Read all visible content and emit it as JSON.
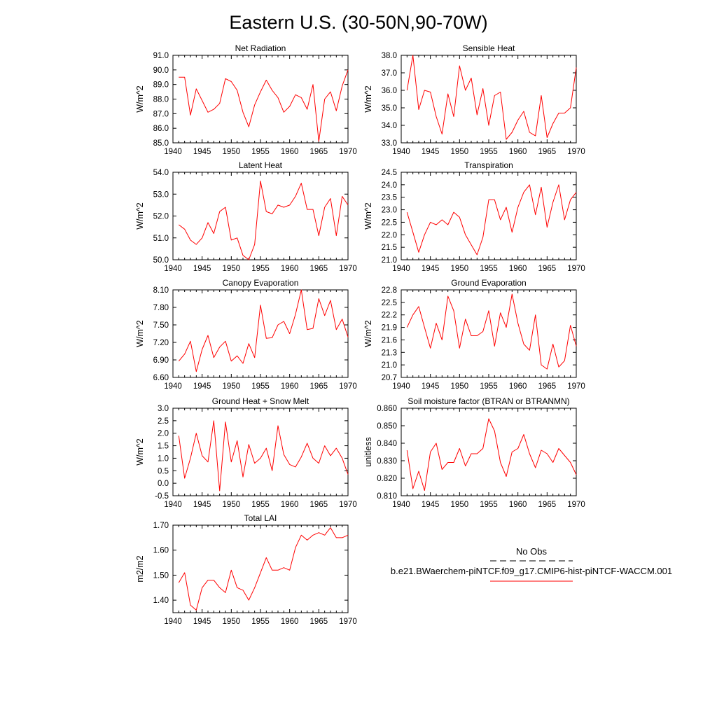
{
  "title": "Eastern U.S. (30-50N,90-70W)",
  "chart_data": [
    {
      "type": "line",
      "title": "Net Radiation",
      "ylabel": "W/m^2",
      "xlim": [
        1940,
        1970
      ],
      "ylim": [
        85.0,
        91.0
      ],
      "xticks": [
        "1940",
        "1945",
        "1950",
        "1955",
        "1960",
        "1965",
        "1970"
      ],
      "yticks": [
        "85.0",
        "86.0",
        "87.0",
        "88.0",
        "89.0",
        "90.0",
        "91.0"
      ],
      "x": [
        1941,
        1942,
        1943,
        1944,
        1945,
        1946,
        1947,
        1948,
        1949,
        1950,
        1951,
        1952,
        1953,
        1954,
        1955,
        1956,
        1957,
        1958,
        1959,
        1960,
        1961,
        1962,
        1963,
        1964,
        1965,
        1966,
        1967,
        1968,
        1969,
        1970
      ],
      "series": [
        {
          "values": [
            89.5,
            89.5,
            86.9,
            88.7,
            87.9,
            87.1,
            87.3,
            87.7,
            89.4,
            89.2,
            88.6,
            87.1,
            86.1,
            87.6,
            88.5,
            89.3,
            88.6,
            88.1,
            87.1,
            87.5,
            88.3,
            88.1,
            87.3,
            89.0,
            85.1,
            88.0,
            88.5,
            87.2,
            88.9,
            90.0
          ]
        }
      ]
    },
    {
      "type": "line",
      "title": "Sensible Heat",
      "ylabel": "W/m^2",
      "xlim": [
        1940,
        1970
      ],
      "ylim": [
        33.0,
        38.0
      ],
      "xticks": [
        "1940",
        "1945",
        "1950",
        "1955",
        "1960",
        "1965",
        "1970"
      ],
      "yticks": [
        "33.0",
        "34.0",
        "35.0",
        "36.0",
        "37.0",
        "38.0"
      ],
      "x": [
        1941,
        1942,
        1943,
        1944,
        1945,
        1946,
        1947,
        1948,
        1949,
        1950,
        1951,
        1952,
        1953,
        1954,
        1955,
        1956,
        1957,
        1958,
        1959,
        1960,
        1961,
        1962,
        1963,
        1964,
        1965,
        1966,
        1967,
        1968,
        1969,
        1970
      ],
      "series": [
        {
          "values": [
            36.0,
            38.0,
            34.9,
            36.0,
            35.9,
            34.5,
            33.5,
            35.8,
            34.5,
            37.4,
            36.0,
            36.7,
            34.6,
            36.1,
            34.0,
            35.7,
            35.9,
            33.2,
            33.6,
            34.3,
            34.8,
            33.6,
            33.4,
            35.7,
            33.3,
            34.1,
            34.7,
            34.7,
            35.0,
            37.3
          ]
        }
      ]
    },
    {
      "type": "line",
      "title": "Latent Heat",
      "ylabel": "W/m^2",
      "xlim": [
        1940,
        1970
      ],
      "ylim": [
        50.0,
        54.0
      ],
      "xticks": [
        "1940",
        "1945",
        "1950",
        "1955",
        "1960",
        "1965",
        "1970"
      ],
      "yticks": [
        "50.0",
        "51.0",
        "52.0",
        "53.0",
        "54.0"
      ],
      "x": [
        1941,
        1942,
        1943,
        1944,
        1945,
        1946,
        1947,
        1948,
        1949,
        1950,
        1951,
        1952,
        1953,
        1954,
        1955,
        1956,
        1957,
        1958,
        1959,
        1960,
        1961,
        1962,
        1963,
        1964,
        1965,
        1966,
        1967,
        1968,
        1969,
        1970
      ],
      "series": [
        {
          "values": [
            51.6,
            51.4,
            50.9,
            50.7,
            51.0,
            51.7,
            51.2,
            52.2,
            52.4,
            50.9,
            51.0,
            50.2,
            50.0,
            50.7,
            53.6,
            52.2,
            52.1,
            52.5,
            52.4,
            52.5,
            52.9,
            53.5,
            52.3,
            52.3,
            51.1,
            52.4,
            52.8,
            51.1,
            52.9,
            52.5
          ]
        }
      ]
    },
    {
      "type": "line",
      "title": "Transpiration",
      "ylabel": "W/m^2",
      "xlim": [
        1940,
        1970
      ],
      "ylim": [
        21.0,
        24.5
      ],
      "xticks": [
        "1940",
        "1945",
        "1950",
        "1955",
        "1960",
        "1965",
        "1970"
      ],
      "yticks": [
        "21.0",
        "21.5",
        "22.0",
        "22.5",
        "23.0",
        "23.5",
        "24.0",
        "24.5"
      ],
      "x": [
        1941,
        1942,
        1943,
        1944,
        1945,
        1946,
        1947,
        1948,
        1949,
        1950,
        1951,
        1952,
        1953,
        1954,
        1955,
        1956,
        1957,
        1958,
        1959,
        1960,
        1961,
        1962,
        1963,
        1964,
        1965,
        1966,
        1967,
        1968,
        1969,
        1970
      ],
      "series": [
        {
          "values": [
            22.9,
            22.1,
            21.3,
            22.0,
            22.5,
            22.4,
            22.6,
            22.4,
            22.9,
            22.7,
            22.0,
            21.6,
            21.2,
            21.9,
            23.4,
            23.4,
            22.6,
            23.1,
            22.1,
            23.1,
            23.7,
            24.0,
            22.8,
            23.9,
            22.3,
            23.3,
            24.0,
            22.6,
            23.4,
            23.7
          ]
        }
      ]
    },
    {
      "type": "line",
      "title": "Canopy Evaporation",
      "ylabel": "W/m^2",
      "xlim": [
        1940,
        1970
      ],
      "ylim": [
        6.6,
        8.1
      ],
      "xticks": [
        "1940",
        "1945",
        "1950",
        "1955",
        "1960",
        "1965",
        "1970"
      ],
      "yticks": [
        "6.60",
        "6.90",
        "7.20",
        "7.50",
        "7.80",
        "8.10"
      ],
      "x": [
        1941,
        1942,
        1943,
        1944,
        1945,
        1946,
        1947,
        1948,
        1949,
        1950,
        1951,
        1952,
        1953,
        1954,
        1955,
        1956,
        1957,
        1958,
        1959,
        1960,
        1961,
        1962,
        1963,
        1964,
        1965,
        1966,
        1967,
        1968,
        1969,
        1970
      ],
      "series": [
        {
          "values": [
            6.88,
            7.0,
            7.22,
            6.7,
            7.08,
            7.32,
            6.94,
            7.12,
            7.22,
            6.88,
            6.97,
            6.84,
            7.18,
            6.94,
            7.84,
            7.27,
            7.28,
            7.5,
            7.56,
            7.35,
            7.68,
            8.1,
            7.42,
            7.44,
            7.95,
            7.66,
            7.92,
            7.42,
            7.6,
            7.29
          ]
        }
      ]
    },
    {
      "type": "line",
      "title": "Ground Evaporation",
      "ylabel": "W/m^2",
      "xlim": [
        1940,
        1970
      ],
      "ylim": [
        20.7,
        22.8
      ],
      "xticks": [
        "1940",
        "1945",
        "1950",
        "1955",
        "1960",
        "1965",
        "1970"
      ],
      "yticks": [
        "20.7",
        "21.0",
        "21.3",
        "21.6",
        "21.9",
        "22.2",
        "22.5",
        "22.8"
      ],
      "x": [
        1941,
        1942,
        1943,
        1944,
        1945,
        1946,
        1947,
        1948,
        1949,
        1950,
        1951,
        1952,
        1953,
        1954,
        1955,
        1956,
        1957,
        1958,
        1959,
        1960,
        1961,
        1962,
        1963,
        1964,
        1965,
        1966,
        1967,
        1968,
        1969,
        1970
      ],
      "series": [
        {
          "values": [
            21.9,
            22.2,
            22.4,
            21.9,
            21.4,
            22.0,
            21.6,
            22.65,
            22.3,
            21.4,
            22.1,
            21.7,
            21.7,
            21.8,
            22.3,
            21.45,
            22.25,
            21.9,
            22.7,
            22.0,
            21.5,
            21.35,
            22.2,
            21.0,
            20.9,
            21.5,
            20.95,
            21.1,
            21.95,
            21.45
          ]
        }
      ]
    },
    {
      "type": "line",
      "title": "Ground Heat + Snow Melt",
      "ylabel": "W/m^2",
      "xlim": [
        1940,
        1970
      ],
      "ylim": [
        -0.5,
        3.0
      ],
      "xticks": [
        "1940",
        "1945",
        "1950",
        "1955",
        "1960",
        "1965",
        "1970"
      ],
      "yticks": [
        "-0.5",
        "0.0",
        "0.5",
        "1.0",
        "1.5",
        "2.0",
        "2.5",
        "3.0"
      ],
      "x": [
        1941,
        1942,
        1943,
        1944,
        1945,
        1946,
        1947,
        1948,
        1949,
        1950,
        1951,
        1952,
        1953,
        1954,
        1955,
        1956,
        1957,
        1958,
        1959,
        1960,
        1961,
        1962,
        1963,
        1964,
        1965,
        1966,
        1967,
        1968,
        1969,
        1970
      ],
      "series": [
        {
          "values": [
            1.9,
            0.2,
            1.0,
            2.0,
            1.1,
            0.85,
            2.5,
            -0.3,
            2.45,
            0.85,
            1.7,
            0.25,
            1.55,
            0.8,
            1.0,
            1.4,
            0.5,
            2.3,
            1.15,
            0.75,
            0.65,
            1.05,
            1.6,
            1.0,
            0.8,
            1.5,
            1.1,
            1.4,
            1.0,
            0.35
          ]
        }
      ]
    },
    {
      "type": "line",
      "title": "Soil moisture factor (BTRAN or BTRANMN)",
      "ylabel": "unitless",
      "xlim": [
        1940,
        1970
      ],
      "ylim": [
        0.81,
        0.86
      ],
      "xticks": [
        "1940",
        "1945",
        "1950",
        "1955",
        "1960",
        "1965",
        "1970"
      ],
      "yticks": [
        "0.810",
        "0.820",
        "0.830",
        "0.840",
        "0.850",
        "0.860"
      ],
      "x": [
        1941,
        1942,
        1943,
        1944,
        1945,
        1946,
        1947,
        1948,
        1949,
        1950,
        1951,
        1952,
        1953,
        1954,
        1955,
        1956,
        1957,
        1958,
        1959,
        1960,
        1961,
        1962,
        1963,
        1964,
        1965,
        1966,
        1967,
        1968,
        1969,
        1970
      ],
      "series": [
        {
          "values": [
            0.836,
            0.814,
            0.824,
            0.813,
            0.835,
            0.84,
            0.825,
            0.829,
            0.829,
            0.837,
            0.827,
            0.834,
            0.834,
            0.837,
            0.854,
            0.847,
            0.829,
            0.821,
            0.835,
            0.837,
            0.845,
            0.834,
            0.826,
            0.836,
            0.834,
            0.829,
            0.837,
            0.833,
            0.829,
            0.822
          ]
        }
      ]
    },
    {
      "type": "line",
      "title": "Total LAI",
      "ylabel": "m2/m2",
      "xlim": [
        1940,
        1970
      ],
      "ylim": [
        1.35,
        1.7
      ],
      "xticks": [
        "1940",
        "1945",
        "1950",
        "1955",
        "1960",
        "1965",
        "1970"
      ],
      "yticks": [
        "1.40",
        "1.50",
        "1.60",
        "1.70"
      ],
      "x": [
        1941,
        1942,
        1943,
        1944,
        1945,
        1946,
        1947,
        1948,
        1949,
        1950,
        1951,
        1952,
        1953,
        1954,
        1955,
        1956,
        1957,
        1958,
        1959,
        1960,
        1961,
        1962,
        1963,
        1964,
        1965,
        1966,
        1967,
        1968,
        1969,
        1970
      ],
      "series": [
        {
          "values": [
            1.47,
            1.51,
            1.38,
            1.36,
            1.45,
            1.48,
            1.48,
            1.45,
            1.43,
            1.52,
            1.45,
            1.44,
            1.4,
            1.45,
            1.51,
            1.57,
            1.52,
            1.52,
            1.53,
            1.52,
            1.61,
            1.66,
            1.64,
            1.66,
            1.67,
            1.66,
            1.69,
            1.65,
            1.65,
            1.66
          ]
        }
      ]
    }
  ],
  "legend": {
    "obs_label": "No Obs",
    "obs_color": "#000000",
    "model_label": "b.e21.BWaerchem-piNTCF.f09_g17.CMIP6-hist-piNTCF-WACCM.001",
    "model_color": "#ff0000"
  },
  "line_color": "#ff0000"
}
